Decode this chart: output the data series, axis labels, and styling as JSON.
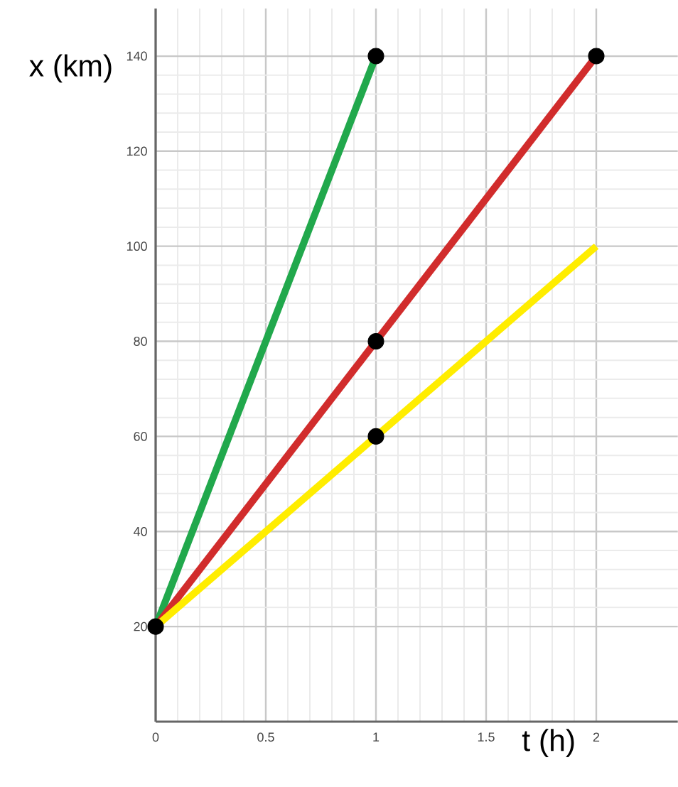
{
  "chart_data": {
    "type": "line",
    "xlabel": "t (h)",
    "ylabel": "x (km)",
    "xlim": [
      0,
      2.37
    ],
    "ylim": [
      0,
      150
    ],
    "xticks": [
      0,
      0.5,
      1,
      1.5,
      2
    ],
    "yticks": [
      20,
      40,
      60,
      80,
      100,
      120,
      140
    ],
    "grid": true,
    "line_style": "solid",
    "series": [
      {
        "color": "#21a84c",
        "x": [
          0,
          1
        ],
        "values": [
          20,
          140
        ]
      },
      {
        "color": "#d12c2c",
        "x": [
          0,
          1,
          2
        ],
        "values": [
          20,
          80,
          140
        ]
      },
      {
        "color": "#ffed00",
        "x": [
          0,
          1,
          2
        ],
        "values": [
          20,
          60,
          100
        ]
      },
      {
        "type": "scatter",
        "marker": "circle",
        "color": "#000000",
        "x": [
          0,
          1,
          1,
          2,
          1
        ],
        "values": [
          20,
          140,
          80,
          140,
          60
        ]
      }
    ]
  }
}
